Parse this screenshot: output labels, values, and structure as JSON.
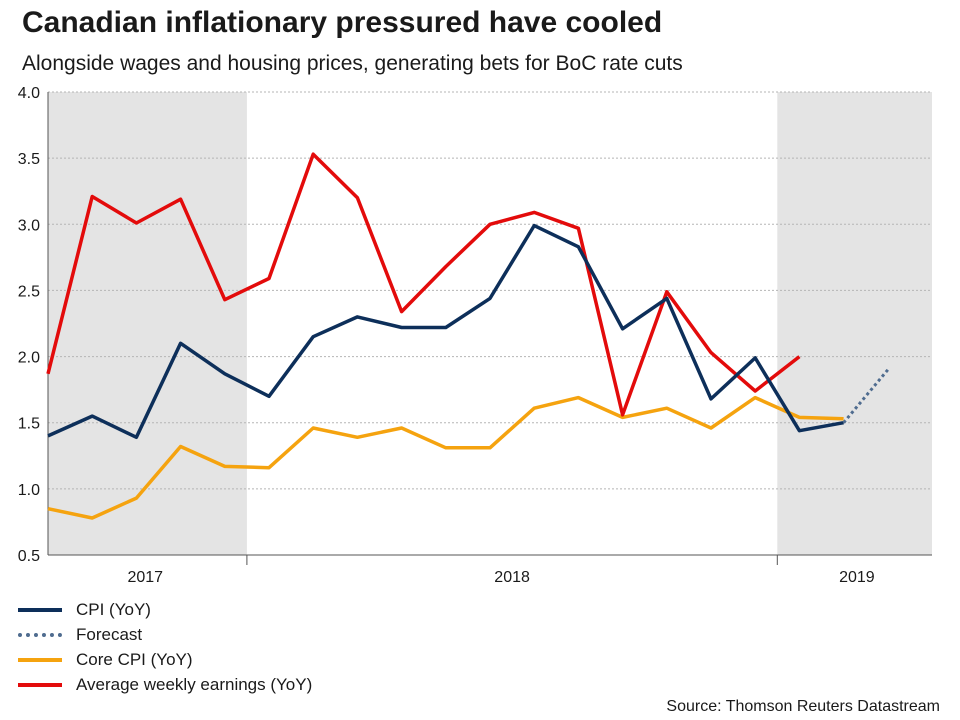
{
  "header": {
    "title": "Canadian inflationary pressured have cooled",
    "subtitle": "Alongside wages and housing prices, generating bets for BoC rate cuts"
  },
  "source": "Source: Thomson Reuters Datastream",
  "colors": {
    "cpi": "#0d2f5a",
    "forecast": "#4f6c8f",
    "core": "#f5a30f",
    "earnings": "#e30b0b",
    "shade": "#e4e4e4",
    "grid": "#b5b5b5",
    "axis": "#555555"
  },
  "chart_data": {
    "type": "line",
    "title": "Canadian inflationary pressured have cooled",
    "ylim": [
      0.5,
      4.0
    ],
    "yticks": [
      0.5,
      1.0,
      1.5,
      2.0,
      2.5,
      3.0,
      3.5,
      4.0
    ],
    "ytick_labels": [
      "0.5",
      "1.0",
      "1.5",
      "2.0",
      "2.5",
      "3.0",
      "3.5",
      "4.0"
    ],
    "x_range": [
      0,
      20
    ],
    "year_labels": [
      {
        "label": "2017",
        "x": 2.2
      },
      {
        "label": "2018",
        "x": 10.5
      },
      {
        "label": "2019",
        "x": 18.3
      }
    ],
    "year_boundaries": [
      4.5,
      16.5
    ],
    "shaded_ranges": [
      [
        0,
        4.5
      ],
      [
        16.5,
        20
      ]
    ],
    "grid": true,
    "series": [
      {
        "name": "CPI (YoY)",
        "key": "cpi",
        "x": [
          0,
          1,
          2,
          3,
          4,
          5,
          6,
          7,
          8,
          9,
          10,
          11,
          12,
          13,
          14,
          15,
          16,
          17,
          18
        ],
        "values": [
          1.4,
          1.55,
          1.39,
          2.1,
          1.87,
          1.7,
          2.15,
          2.3,
          2.22,
          2.22,
          2.44,
          2.99,
          2.83,
          2.21,
          2.44,
          1.68,
          1.99,
          1.44,
          1.5
        ]
      },
      {
        "name": "Forecast",
        "key": "forecast",
        "dashed": true,
        "x": [
          18,
          19
        ],
        "values": [
          1.5,
          1.9
        ]
      },
      {
        "name": "Core CPI (YoY)",
        "key": "core",
        "x": [
          0,
          1,
          2,
          3,
          4,
          5,
          6,
          7,
          8,
          9,
          10,
          11,
          12,
          13,
          14,
          15,
          16,
          17,
          18
        ],
        "values": [
          0.85,
          0.78,
          0.93,
          1.32,
          1.17,
          1.16,
          1.46,
          1.39,
          1.46,
          1.31,
          1.31,
          1.61,
          1.69,
          1.54,
          1.61,
          1.46,
          1.69,
          1.54,
          1.53
        ]
      },
      {
        "name": "Average weekly earnings (YoY)",
        "key": "earnings",
        "x": [
          0,
          1,
          2,
          3,
          4,
          5,
          6,
          7,
          8,
          9,
          10,
          11,
          12,
          13,
          14,
          15,
          16,
          17
        ],
        "values": [
          1.87,
          3.21,
          3.01,
          3.19,
          2.43,
          2.59,
          3.53,
          3.2,
          2.34,
          2.68,
          3.0,
          3.09,
          2.97,
          1.56,
          2.49,
          2.03,
          1.74,
          2.0
        ]
      }
    ]
  },
  "legend": [
    {
      "label": "CPI (YoY)",
      "color": "#0d2f5a",
      "style": "solid"
    },
    {
      "label": "Forecast",
      "color": "#4f6c8f",
      "style": "dotted"
    },
    {
      "label": "Core CPI (YoY)",
      "color": "#f5a30f",
      "style": "solid"
    },
    {
      "label": "Average weekly earnings (YoY)",
      "color": "#e30b0b",
      "style": "solid"
    }
  ]
}
